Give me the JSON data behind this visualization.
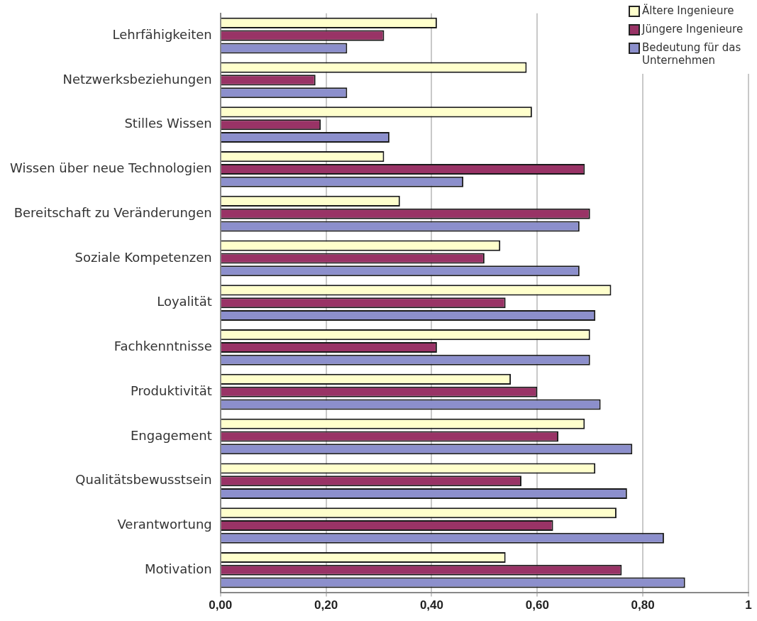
{
  "chart_data": {
    "type": "bar",
    "orientation": "horizontal",
    "categories": [
      "Lehrfähigkeiten",
      "Netzwerksbeziehungen",
      "Stilles Wissen",
      "Wissen über neue Technologien",
      "Bereitschaft zu Veränderungen",
      "Soziale Kompetenzen",
      "Loyalität",
      "Fachkenntnisse",
      "Produktivität",
      "Engagement",
      "Qualitätsbewusstsein",
      "Verantwortung",
      "Motivation"
    ],
    "series": [
      {
        "name": "Ältere Ingenieure",
        "color": "#ffffcc",
        "values": [
          0.41,
          0.58,
          0.59,
          0.31,
          0.34,
          0.53,
          0.74,
          0.7,
          0.55,
          0.69,
          0.71,
          0.75,
          0.54
        ]
      },
      {
        "name": "Jüngere Ingenieure",
        "color": "#993366",
        "values": [
          0.31,
          0.18,
          0.19,
          0.69,
          0.7,
          0.5,
          0.54,
          0.41,
          0.6,
          0.64,
          0.57,
          0.63,
          0.76
        ]
      },
      {
        "name": "Bedeutung für das Unternehmen",
        "color": "#8c8fcc",
        "values": [
          0.24,
          0.24,
          0.32,
          0.46,
          0.68,
          0.68,
          0.71,
          0.7,
          0.72,
          0.78,
          0.77,
          0.84,
          0.88
        ]
      }
    ],
    "xlim": [
      0,
      1
    ],
    "xticks": [
      {
        "value": 0,
        "label": "0,00"
      },
      {
        "value": 0.2,
        "label": "0,20"
      },
      {
        "value": 0.4,
        "label": "0,40"
      },
      {
        "value": 0.6,
        "label": "0,60"
      },
      {
        "value": 0.8,
        "label": "0,80"
      },
      1
    ],
    "grid": "x",
    "legend": "top right"
  }
}
